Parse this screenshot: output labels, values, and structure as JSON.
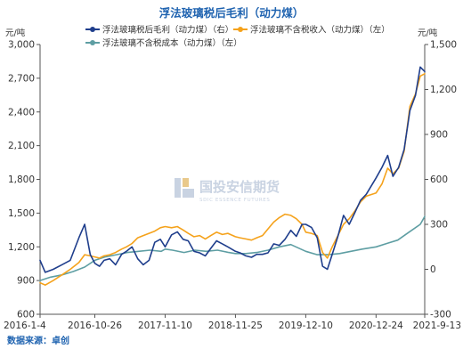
{
  "chart_data": {
    "type": "line",
    "title": "浮法玻璃税后毛利（动力煤）",
    "left_unit": "元/吨",
    "right_unit": "元/吨",
    "source": "数据来源：卓创",
    "watermark": {
      "name": "国投安信期货",
      "sub": "SDIC ESSENCE FUTURES"
    },
    "x_ticks": [
      "2016-1-4",
      "2016-10-26",
      "2017-11-10",
      "2018-11-25",
      "2019-12-10",
      "2020-12-24",
      "2021-9-13"
    ],
    "y_left": {
      "min": 600,
      "max": 3000,
      "ticks": [
        "3,000",
        "2,700",
        "2,400",
        "2,100",
        "1,800",
        "1,500",
        "1,200",
        "900",
        "600"
      ]
    },
    "y_right": {
      "min": -300,
      "max": 1500,
      "ticks": [
        "1,500",
        "1,200",
        "900",
        "600",
        "300",
        "0",
        "-300"
      ]
    },
    "legend": [
      "浮法玻璃税后毛利（动力煤）（右）",
      "浮法玻璃不含税收入（动力煤）（左）",
      "浮法玻璃不含税成本（动力煤）（左）"
    ],
    "colors": {
      "profit": "#1f3e8c",
      "revenue": "#f5a21b",
      "cost": "#5e9ea3",
      "title": "#1f63b0"
    },
    "series": [
      {
        "name": "浮法玻璃税后毛利（动力煤）（右）",
        "axis": "right",
        "color": "#1f3e8c",
        "x": [
          "2016-01-04",
          "2016-02-01",
          "2016-03-15",
          "2016-05-01",
          "2016-06-15",
          "2016-08-01",
          "2016-09-01",
          "2016-10-01",
          "2016-10-26",
          "2016-11-20",
          "2016-12-15",
          "2017-01-15",
          "2017-02-15",
          "2017-03-20",
          "2017-04-15",
          "2017-05-15",
          "2017-06-15",
          "2017-07-15",
          "2017-08-15",
          "2017-09-15",
          "2017-10-15",
          "2017-11-10",
          "2017-12-15",
          "2018-01-15",
          "2018-02-15",
          "2018-03-15",
          "2018-04-15",
          "2018-05-15",
          "2018-06-15",
          "2018-07-15",
          "2018-08-15",
          "2018-09-15",
          "2018-10-15",
          "2018-11-25",
          "2018-12-20",
          "2019-01-20",
          "2019-02-20",
          "2019-03-20",
          "2019-04-20",
          "2019-05-20",
          "2019-06-20",
          "2019-07-20",
          "2019-08-20",
          "2019-09-20",
          "2019-10-20",
          "2019-11-20",
          "2019-12-10",
          "2020-01-10",
          "2020-02-10",
          "2020-03-10",
          "2020-04-05",
          "2020-05-01",
          "2020-06-01",
          "2020-07-01",
          "2020-08-01",
          "2020-09-01",
          "2020-10-01",
          "2020-11-01",
          "2020-12-24",
          "2021-01-25",
          "2021-02-25",
          "2021-03-25",
          "2021-04-25",
          "2021-05-25",
          "2021-06-25",
          "2021-07-25",
          "2021-08-20",
          "2021-09-13"
        ],
        "values": [
          60,
          -20,
          0,
          30,
          60,
          210,
          300,
          100,
          40,
          20,
          60,
          70,
          30,
          100,
          120,
          150,
          70,
          30,
          60,
          180,
          200,
          150,
          230,
          250,
          200,
          190,
          120,
          110,
          90,
          140,
          190,
          170,
          150,
          120,
          110,
          90,
          80,
          100,
          100,
          110,
          170,
          160,
          200,
          260,
          220,
          300,
          300,
          280,
          210,
          20,
          0,
          100,
          220,
          360,
          300,
          380,
          460,
          500,
          610,
          680,
          760,
          620,
          680,
          800,
          1060,
          1160,
          1350,
          1320
        ]
      },
      {
        "name": "浮法玻璃不含税收入（动力煤）（左）",
        "axis": "left",
        "color": "#f5a21b",
        "x": [
          "2016-01-04",
          "2016-02-01",
          "2016-03-15",
          "2016-05-01",
          "2016-06-15",
          "2016-08-01",
          "2016-09-01",
          "2016-10-01",
          "2016-10-26",
          "2016-11-20",
          "2016-12-15",
          "2017-01-15",
          "2017-02-15",
          "2017-03-20",
          "2017-04-15",
          "2017-05-15",
          "2017-06-15",
          "2017-07-15",
          "2017-08-15",
          "2017-09-15",
          "2017-10-15",
          "2017-11-10",
          "2017-12-15",
          "2018-01-15",
          "2018-02-15",
          "2018-03-15",
          "2018-04-15",
          "2018-05-15",
          "2018-06-15",
          "2018-07-15",
          "2018-08-15",
          "2018-09-15",
          "2018-10-15",
          "2018-11-25",
          "2018-12-20",
          "2019-01-20",
          "2019-02-20",
          "2019-03-20",
          "2019-04-20",
          "2019-05-20",
          "2019-06-20",
          "2019-07-20",
          "2019-08-20",
          "2019-09-20",
          "2019-10-20",
          "2019-11-20",
          "2019-12-10",
          "2020-01-10",
          "2020-02-10",
          "2020-03-10",
          "2020-04-05",
          "2020-05-01",
          "2020-06-01",
          "2020-07-01",
          "2020-08-01",
          "2020-09-01",
          "2020-10-01",
          "2020-11-01",
          "2020-12-24",
          "2021-01-25",
          "2021-02-25",
          "2021-03-25",
          "2021-04-25",
          "2021-05-25",
          "2021-06-25",
          "2021-07-25",
          "2021-08-20",
          "2021-09-13"
        ],
        "values": [
          880,
          860,
          900,
          950,
          1000,
          1060,
          1130,
          1120,
          1110,
          1100,
          1120,
          1130,
          1150,
          1180,
          1200,
          1230,
          1280,
          1300,
          1320,
          1340,
          1370,
          1380,
          1370,
          1380,
          1350,
          1320,
          1290,
          1300,
          1270,
          1300,
          1330,
          1310,
          1320,
          1290,
          1280,
          1270,
          1260,
          1280,
          1300,
          1360,
          1420,
          1460,
          1490,
          1480,
          1450,
          1400,
          1330,
          1320,
          1300,
          1150,
          1100,
          1200,
          1300,
          1400,
          1450,
          1520,
          1600,
          1650,
          1680,
          1760,
          1900,
          1850,
          1900,
          2050,
          2450,
          2560,
          2720,
          2740
        ]
      },
      {
        "name": "浮法玻璃不含税成本（动力煤）（左）",
        "axis": "left",
        "color": "#5e9ea3",
        "x": [
          "2016-01-04",
          "2016-03-01",
          "2016-05-01",
          "2016-07-01",
          "2016-09-01",
          "2016-10-26",
          "2016-12-20",
          "2017-02-20",
          "2017-04-20",
          "2017-06-20",
          "2017-08-20",
          "2017-10-20",
          "2017-11-10",
          "2017-12-20",
          "2018-02-20",
          "2018-04-20",
          "2018-06-20",
          "2018-08-20",
          "2018-10-20",
          "2018-11-25",
          "2019-01-20",
          "2019-03-20",
          "2019-05-20",
          "2019-07-20",
          "2019-09-20",
          "2019-12-10",
          "2020-02-10",
          "2020-04-10",
          "2020-06-10",
          "2020-08-10",
          "2020-10-10",
          "2020-12-24",
          "2021-02-20",
          "2021-04-20",
          "2021-06-20",
          "2021-08-20",
          "2021-09-13"
        ],
        "values": [
          900,
          930,
          950,
          980,
          1020,
          1080,
          1110,
          1130,
          1150,
          1160,
          1170,
          1160,
          1180,
          1170,
          1150,
          1170,
          1160,
          1170,
          1150,
          1140,
          1140,
          1150,
          1170,
          1200,
          1220,
          1160,
          1130,
          1130,
          1140,
          1160,
          1180,
          1200,
          1230,
          1260,
          1330,
          1400,
          1470
        ]
      }
    ]
  }
}
